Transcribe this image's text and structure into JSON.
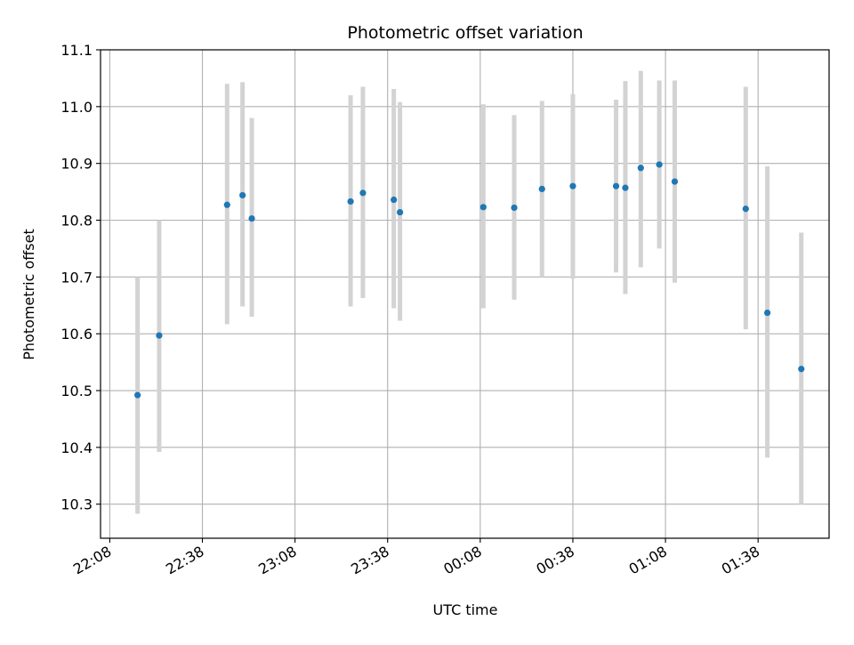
{
  "chart_data": {
    "type": "scatter",
    "title": "Photometric offset variation",
    "xlabel": "UTC time",
    "ylabel": "Photometric offset",
    "xlim_minutes_since_22_08": [
      -3,
      233
    ],
    "ylim": [
      10.24,
      11.1
    ],
    "x_ticks": [
      "22:08",
      "22:38",
      "23:08",
      "23:38",
      "00:08",
      "00:38",
      "01:08",
      "01:38"
    ],
    "y_ticks": [
      "10.3",
      "10.4",
      "10.5",
      "10.6",
      "10.7",
      "10.8",
      "10.9",
      "11.0",
      "11.1"
    ],
    "grid": true,
    "colors": {
      "point": "#1f77b4",
      "errorbar": "#d3d3d3",
      "grid": "#b0b0b0"
    },
    "points": [
      {
        "time": "22:17",
        "y": 10.492,
        "y_low": 10.283,
        "y_high": 10.7
      },
      {
        "time": "22:24",
        "y": 10.597,
        "y_low": 10.392,
        "y_high": 10.8
      },
      {
        "time": "22:46",
        "y": 10.827,
        "y_low": 10.617,
        "y_high": 11.04
      },
      {
        "time": "22:51",
        "y": 10.844,
        "y_low": 10.648,
        "y_high": 11.043
      },
      {
        "time": "22:54",
        "y": 10.803,
        "y_low": 10.63,
        "y_high": 10.98
      },
      {
        "time": "23:26",
        "y": 10.833,
        "y_low": 10.648,
        "y_high": 11.02
      },
      {
        "time": "23:30",
        "y": 10.848,
        "y_low": 10.663,
        "y_high": 11.035
      },
      {
        "time": "23:40",
        "y": 10.836,
        "y_low": 10.645,
        "y_high": 11.031
      },
      {
        "time": "23:42",
        "y": 10.814,
        "y_low": 10.623,
        "y_high": 11.008
      },
      {
        "time": "00:09",
        "y": 10.823,
        "y_low": 10.645,
        "y_high": 11.004
      },
      {
        "time": "00:19",
        "y": 10.822,
        "y_low": 10.66,
        "y_high": 10.985
      },
      {
        "time": "00:28",
        "y": 10.855,
        "y_low": 10.7,
        "y_high": 11.01
      },
      {
        "time": "00:38",
        "y": 10.86,
        "y_low": 10.697,
        "y_high": 11.022
      },
      {
        "time": "00:52",
        "y": 10.86,
        "y_low": 10.708,
        "y_high": 11.012
      },
      {
        "time": "00:55",
        "y": 10.857,
        "y_low": 10.67,
        "y_high": 11.045
      },
      {
        "time": "01:00",
        "y": 10.892,
        "y_low": 10.717,
        "y_high": 11.063
      },
      {
        "time": "01:06",
        "y": 10.898,
        "y_low": 10.75,
        "y_high": 11.046
      },
      {
        "time": "01:11",
        "y": 10.868,
        "y_low": 10.69,
        "y_high": 11.046
      },
      {
        "time": "01:34",
        "y": 10.82,
        "y_low": 10.608,
        "y_high": 11.035
      },
      {
        "time": "01:41",
        "y": 10.637,
        "y_low": 10.382,
        "y_high": 10.895
      },
      {
        "time": "01:52",
        "y": 10.538,
        "y_low": 10.3,
        "y_high": 10.778
      }
    ]
  }
}
